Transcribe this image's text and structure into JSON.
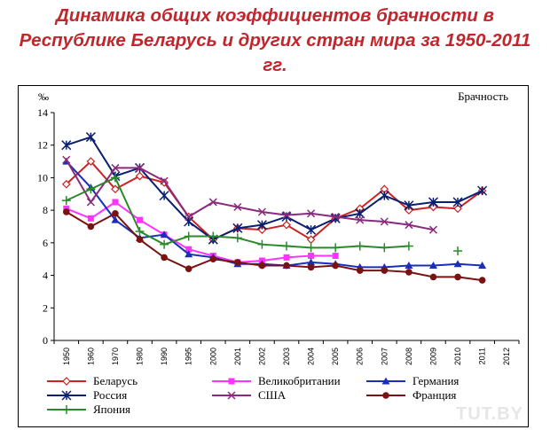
{
  "heading": {
    "line1": "Динамика общих коэффициентов брачности в",
    "line2": "Республике Беларусь и других стран мира за 1950-2011",
    "line3": "гг."
  },
  "watermark": "TUT.BY",
  "chart_data": {
    "type": "line",
    "title": "Брачность",
    "ylabel": "‰",
    "xlabel": "",
    "ylim": [
      0,
      14
    ],
    "yticks": [
      0,
      2,
      4,
      6,
      8,
      10,
      12,
      14
    ],
    "grid": false,
    "legend_position": "bottom",
    "categories": [
      "1950",
      "1960",
      "1970",
      "1980",
      "1990",
      "1995",
      "2000",
      "2001",
      "2002",
      "2003",
      "2004",
      "2005",
      "2006",
      "2007",
      "2008",
      "2009",
      "2010",
      "2011",
      "2012"
    ],
    "series": [
      {
        "name": "Беларусь",
        "color": "#cc2222",
        "marker": "diamond-open",
        "marker_color": "#cc2222",
        "values": [
          9.6,
          11.0,
          9.3,
          10.1,
          9.7,
          7.6,
          6.2,
          6.9,
          6.8,
          7.1,
          6.2,
          7.5,
          8.1,
          9.3,
          8.0,
          8.2,
          8.1,
          9.2,
          null
        ]
      },
      {
        "name": "Великобритании",
        "color": "#ff33ff",
        "marker": "square",
        "marker_color": "#ff33ff",
        "values": [
          8.1,
          7.5,
          8.5,
          7.4,
          6.5,
          5.6,
          5.2,
          4.8,
          4.9,
          5.1,
          5.2,
          5.2,
          null,
          null,
          null,
          null,
          null,
          null,
          null
        ]
      },
      {
        "name": "Германия",
        "color": "#1a2eb8",
        "marker": "triangle",
        "marker_color": "#1a2eb8",
        "values": [
          11.0,
          9.4,
          7.4,
          6.3,
          6.5,
          5.3,
          5.1,
          4.7,
          4.7,
          4.6,
          4.8,
          4.7,
          4.5,
          4.5,
          4.6,
          4.6,
          4.7,
          4.6,
          null
        ]
      },
      {
        "name": "Россия",
        "color": "#0a1f70",
        "marker": "star",
        "marker_color": "#0a1f70",
        "values": [
          12.0,
          12.5,
          10.1,
          10.6,
          8.9,
          7.3,
          6.2,
          6.9,
          7.1,
          7.6,
          6.8,
          7.5,
          7.8,
          8.9,
          8.3,
          8.5,
          8.5,
          9.2,
          null
        ]
      },
      {
        "name": "США",
        "color": "#8a2a7e",
        "marker": "x",
        "marker_color": "#8a2a7e",
        "values": [
          11.1,
          8.5,
          10.6,
          10.6,
          9.8,
          7.6,
          8.5,
          8.2,
          7.9,
          7.7,
          7.8,
          7.6,
          7.4,
          7.3,
          7.1,
          6.8,
          null,
          null,
          null
        ]
      },
      {
        "name": "Франция",
        "color": "#7a1212",
        "marker": "circle",
        "marker_color": "#7a1212",
        "values": [
          7.9,
          7.0,
          7.8,
          6.2,
          5.1,
          4.4,
          5.0,
          4.8,
          4.6,
          4.6,
          4.5,
          4.6,
          4.3,
          4.3,
          4.2,
          3.9,
          3.9,
          3.7,
          null
        ]
      },
      {
        "name": "Япония",
        "color": "#2a8a2a",
        "marker": "plus",
        "marker_color": "#2a8a2a",
        "values": [
          8.6,
          9.3,
          10.0,
          6.7,
          5.9,
          6.4,
          6.4,
          6.3,
          5.9,
          5.8,
          5.7,
          5.7,
          5.8,
          5.7,
          5.8,
          null,
          5.5,
          null,
          null
        ]
      }
    ]
  }
}
